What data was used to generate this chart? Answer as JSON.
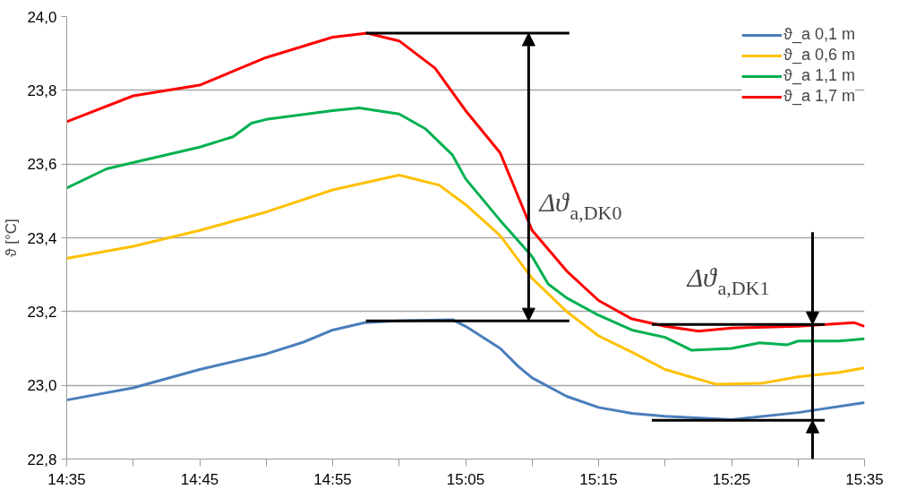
{
  "chart_data": {
    "type": "line",
    "ylabel": "ϑ [°C]",
    "xlim": [
      14.5833,
      15.5833
    ],
    "xticks": [
      {
        "value": 14.5833,
        "label": "14:35"
      },
      {
        "value": 14.6667,
        "label": null
      },
      {
        "value": 14.75,
        "label": "14:45"
      },
      {
        "value": 14.8333,
        "label": null
      },
      {
        "value": 14.9167,
        "label": "14:55"
      },
      {
        "value": 15.0,
        "label": null
      },
      {
        "value": 15.0833,
        "label": "15:05"
      },
      {
        "value": 15.1667,
        "label": null
      },
      {
        "value": 15.25,
        "label": "15:15"
      },
      {
        "value": 15.3333,
        "label": null
      },
      {
        "value": 15.4167,
        "label": "15:25"
      },
      {
        "value": 15.5,
        "label": null
      },
      {
        "value": 15.5833,
        "label": "15:35"
      }
    ],
    "ylim": [
      22.8,
      24.0
    ],
    "yticks": [
      {
        "value": 22.8,
        "label": "22,8"
      },
      {
        "value": 23.0,
        "label": "23,0"
      },
      {
        "value": 23.2,
        "label": "23,2"
      },
      {
        "value": 23.4,
        "label": "23,4"
      },
      {
        "value": 23.6,
        "label": "23,6"
      },
      {
        "value": 23.8,
        "label": "23,8"
      },
      {
        "value": 24.0,
        "label": "24,0"
      }
    ],
    "grid": "y",
    "legend": "top right",
    "marker": "none",
    "line_style": "solid",
    "series": [
      {
        "name": "ϑ_a 0,1 m",
        "color": "#4a7ebb",
        "x": [
          14.5833,
          14.6667,
          14.75,
          14.8333,
          14.88,
          14.9167,
          14.9567,
          15.0,
          15.0667,
          15.0833,
          15.1267,
          15.15,
          15.1667,
          15.21,
          15.25,
          15.2917,
          15.3333,
          15.4167,
          15.5,
          15.5833
        ],
        "values": [
          22.96,
          22.993,
          23.043,
          23.085,
          23.117,
          23.15,
          23.17,
          23.175,
          23.178,
          23.16,
          23.1,
          23.05,
          23.02,
          22.97,
          22.94,
          22.924,
          22.916,
          22.907,
          22.926,
          22.953
        ]
      },
      {
        "name": "ϑ_a 0,6 m",
        "color": "#ffc000",
        "x": [
          14.5833,
          14.6667,
          14.75,
          14.8333,
          14.9167,
          15.0,
          15.05,
          15.0833,
          15.1267,
          15.1667,
          15.21,
          15.25,
          15.2917,
          15.3333,
          15.3967,
          15.4533,
          15.5,
          15.5517,
          15.5833
        ],
        "values": [
          23.344,
          23.377,
          23.42,
          23.47,
          23.53,
          23.57,
          23.543,
          23.49,
          23.406,
          23.29,
          23.2,
          23.134,
          23.09,
          23.043,
          23.003,
          23.005,
          23.023,
          23.035,
          23.047
        ]
      },
      {
        "name": "ϑ_a 1,1 m",
        "color": "#00b050",
        "x": [
          14.5833,
          14.6333,
          14.6667,
          14.75,
          14.7917,
          14.815,
          14.8333,
          14.9167,
          14.95,
          15.0,
          15.0333,
          15.0667,
          15.0833,
          15.1267,
          15.1667,
          15.1867,
          15.21,
          15.25,
          15.2917,
          15.3333,
          15.3667,
          15.4167,
          15.4517,
          15.4867,
          15.5,
          15.5517,
          15.5833
        ],
        "values": [
          23.535,
          23.587,
          23.604,
          23.646,
          23.674,
          23.711,
          23.721,
          23.745,
          23.752,
          23.736,
          23.695,
          23.625,
          23.56,
          23.447,
          23.349,
          23.275,
          23.237,
          23.19,
          23.15,
          23.13,
          23.095,
          23.1,
          23.115,
          23.11,
          23.12,
          23.12,
          23.126
        ]
      },
      {
        "name": "ϑ_a 1,7 m",
        "color": "#ff0000",
        "x": [
          14.5833,
          14.6667,
          14.75,
          14.8333,
          14.9167,
          14.96,
          15.0,
          15.045,
          15.0833,
          15.1267,
          15.1667,
          15.21,
          15.25,
          15.2917,
          15.3333,
          15.375,
          15.4167,
          15.5,
          15.57,
          15.5833
        ],
        "values": [
          23.715,
          23.785,
          23.814,
          23.889,
          23.944,
          23.955,
          23.934,
          23.86,
          23.745,
          23.63,
          23.42,
          23.31,
          23.23,
          23.18,
          23.16,
          23.147,
          23.155,
          23.16,
          23.17,
          23.16
        ]
      },
      {
        "color": "#000000",
        "x": [
          14.9583,
          15.2133
        ],
        "values": [
          23.955,
          23.955
        ]
      },
      {
        "color": "#000000",
        "x": [
          14.9583,
          15.2133
        ],
        "values": [
          23.175,
          23.175
        ]
      },
      {
        "color": "#000000",
        "x": [
          15.3167,
          15.5333
        ],
        "values": [
          23.165,
          23.165
        ]
      },
      {
        "color": "#000000",
        "x": [
          15.3167,
          15.5333
        ],
        "values": [
          22.905,
          22.905
        ]
      }
    ],
    "annotations": [
      "Δϑ$_{a,DK0}$",
      "Δϑ$_{a,DK1}$"
    ]
  }
}
